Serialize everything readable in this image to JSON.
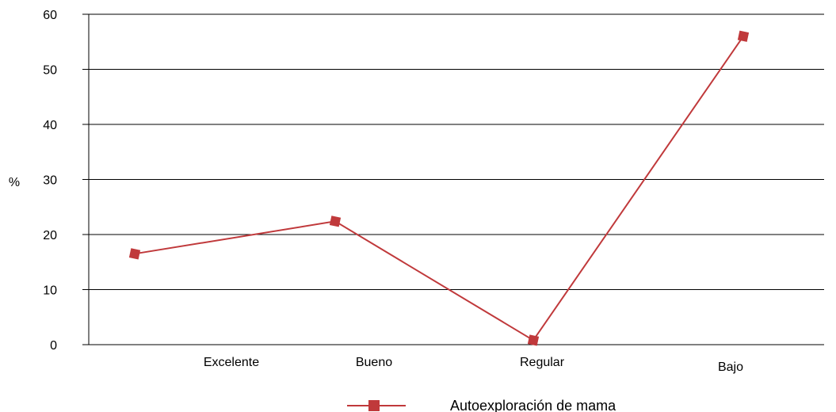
{
  "chart_data": {
    "type": "line",
    "categories": [
      "Excelente",
      "Bueno",
      "Regular",
      "Bajo"
    ],
    "series": [
      {
        "name": "Autoexploración de mama",
        "values": [
          16.5,
          22.4,
          0.8,
          56
        ],
        "color": "#c0393b",
        "marker": "square"
      }
    ],
    "ylabel": "%",
    "xlabel": "",
    "title": "",
    "ylim": [
      0,
      60
    ],
    "yticks": [
      "0",
      "10",
      "20",
      "30",
      "40",
      "50",
      "60"
    ],
    "grid": true,
    "legend_position": "bottom"
  }
}
